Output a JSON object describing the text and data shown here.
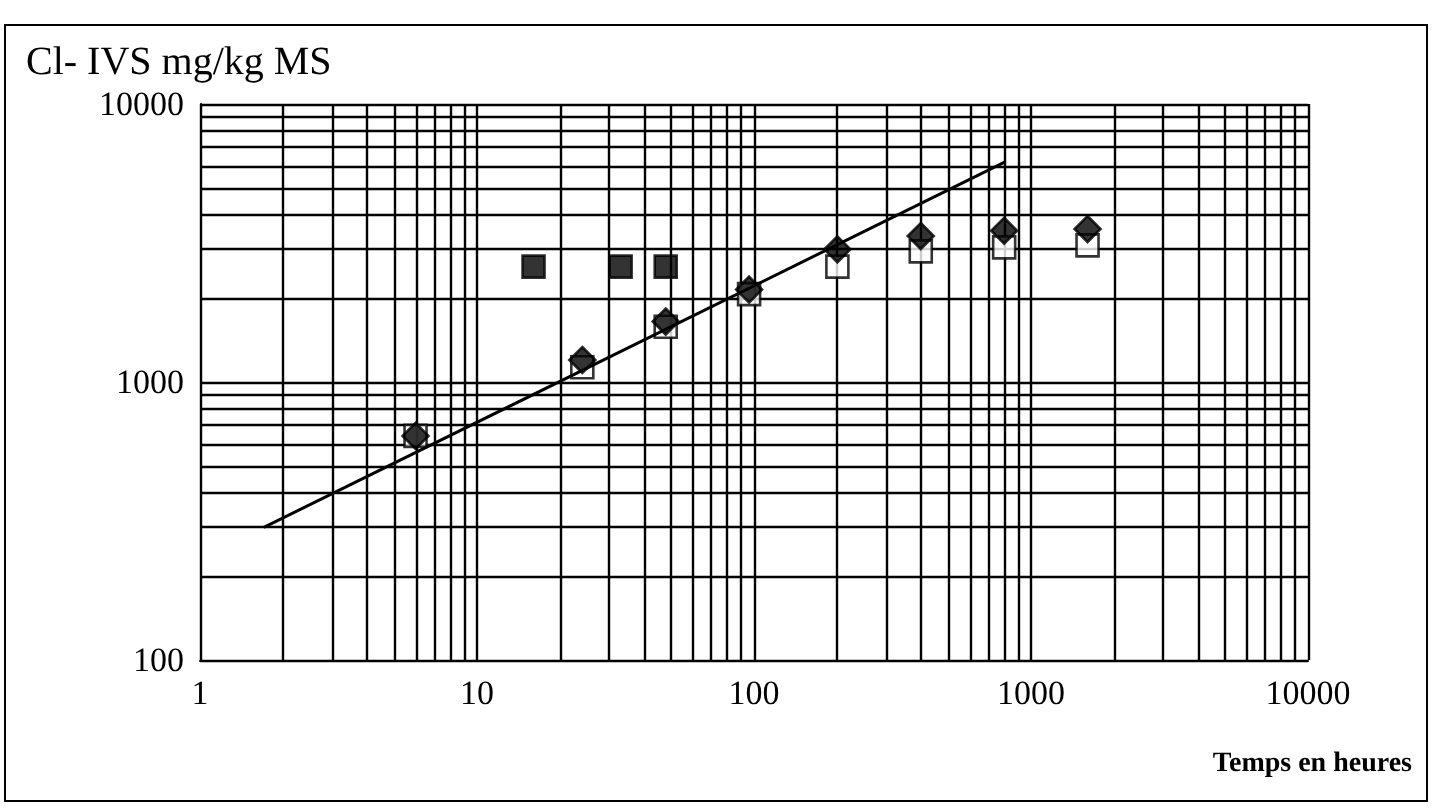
{
  "chart_data": {
    "type": "scatter",
    "title": "Cl- IVS mg/kg MS",
    "xlabel": "Temps en heures",
    "log": "xy",
    "grid": true,
    "xlim": [
      1,
      10000
    ],
    "xticks": [
      1,
      {
        "value": 2,
        "label": null
      },
      {
        "value": 3,
        "label": null
      },
      {
        "value": 4,
        "label": null
      },
      {
        "value": 5,
        "label": null
      },
      {
        "value": 6,
        "label": null
      },
      {
        "value": 7,
        "label": null
      },
      {
        "value": 8,
        "label": null
      },
      {
        "value": 9,
        "label": null
      },
      10,
      {
        "value": 20,
        "label": null
      },
      {
        "value": 30,
        "label": null
      },
      {
        "value": 40,
        "label": null
      },
      {
        "value": 50,
        "label": null
      },
      {
        "value": 60,
        "label": null
      },
      {
        "value": 70,
        "label": null
      },
      {
        "value": 80,
        "label": null
      },
      {
        "value": 90,
        "label": null
      },
      100,
      {
        "value": 200,
        "label": null
      },
      {
        "value": 300,
        "label": null
      },
      {
        "value": 400,
        "label": null
      },
      {
        "value": 500,
        "label": null
      },
      {
        "value": 600,
        "label": null
      },
      {
        "value": 700,
        "label": null
      },
      {
        "value": 800,
        "label": null
      },
      {
        "value": 900,
        "label": null
      },
      1000,
      {
        "value": 2000,
        "label": null
      },
      {
        "value": 3000,
        "label": null
      },
      {
        "value": 4000,
        "label": null
      },
      {
        "value": 5000,
        "label": null
      },
      {
        "value": 6000,
        "label": null
      },
      {
        "value": 7000,
        "label": null
      },
      {
        "value": 8000,
        "label": null
      },
      {
        "value": 9000,
        "label": null
      },
      10000
    ],
    "ylim": [
      100,
      10000
    ],
    "yticks": [
      100,
      {
        "value": 200,
        "label": null
      },
      {
        "value": 300,
        "label": null
      },
      {
        "value": 400,
        "label": null
      },
      {
        "value": 500,
        "label": null
      },
      {
        "value": 600,
        "label": null
      },
      {
        "value": 700,
        "label": null
      },
      {
        "value": 800,
        "label": null
      },
      {
        "value": 900,
        "label": null
      },
      1000,
      {
        "value": 2000,
        "label": null
      },
      {
        "value": 3000,
        "label": null
      },
      {
        "value": 4000,
        "label": null
      },
      {
        "value": 5000,
        "label": null
      },
      {
        "value": 6000,
        "label": null
      },
      {
        "value": 7000,
        "label": null
      },
      {
        "value": 8000,
        "label": null
      },
      {
        "value": 9000,
        "label": null
      },
      10000
    ],
    "series": [
      {
        "marker": "square",
        "color": "#000000",
        "x": [
          16,
          33,
          48
        ],
        "values": [
          2600,
          2600,
          2600
        ]
      },
      {
        "marker": "square",
        "color": "#ffffff",
        "x": [
          6,
          24,
          48,
          96,
          200,
          400,
          800,
          1600
        ],
        "values": [
          640,
          1130,
          1580,
          2070,
          2600,
          2950,
          3050,
          3100
        ]
      },
      {
        "marker": "diamond",
        "color": "#000000",
        "x": [
          6,
          24,
          48,
          96,
          200,
          400,
          800,
          1600
        ],
        "values": [
          640,
          1200,
          1650,
          2150,
          3000,
          3350,
          3500,
          3550
        ]
      },
      {
        "type": "line",
        "marker": "none",
        "line_style": "solid",
        "color": "#000000",
        "x": [
          1.7,
          810
        ],
        "values": [
          300,
          6200
        ]
      }
    ]
  }
}
